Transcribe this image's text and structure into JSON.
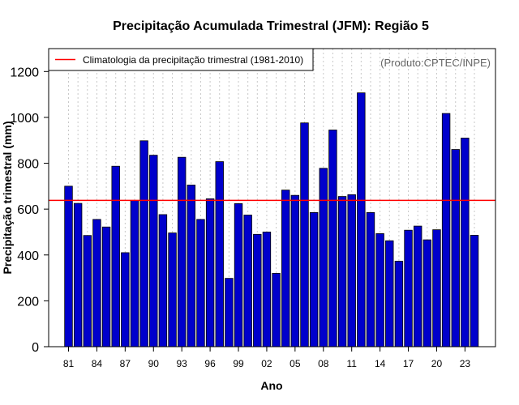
{
  "chart_data": {
    "type": "bar",
    "title": "Precipitação Acumulada Trimestral (JFM): Região 5",
    "xlabel": "Ano",
    "ylabel": "Precipitação trimestral (mm)",
    "ylim": [
      0,
      1300
    ],
    "yticks": [
      0,
      200,
      400,
      600,
      800,
      1000,
      1200
    ],
    "grid": "vertical dotted",
    "credit": "(Produto:CPTEC/INPE)",
    "legend": {
      "placement": "top-left",
      "entries": [
        {
          "label": "Climatologia da precipitação trimestral (1981-2010)",
          "color": "#ff0000"
        }
      ]
    },
    "climatology": 638,
    "categories": [
      "1981",
      "1982",
      "1983",
      "1984",
      "1985",
      "1986",
      "1987",
      "1988",
      "1989",
      "1990",
      "1991",
      "1992",
      "1993",
      "1994",
      "1995",
      "1996",
      "1997",
      "1998",
      "1999",
      "2000",
      "2001",
      "2002",
      "2003",
      "2004",
      "2005",
      "2006",
      "2007",
      "2008",
      "2009",
      "2010",
      "2011",
      "2012",
      "2013",
      "2014",
      "2015",
      "2016",
      "2017",
      "2018",
      "2019",
      "2020",
      "2021",
      "2022",
      "2023",
      "2024"
    ],
    "xtick_labels": [
      "81",
      "84",
      "87",
      "90",
      "93",
      "96",
      "99",
      "02",
      "05",
      "08",
      "11",
      "14",
      "17",
      "20",
      "23"
    ],
    "xtick_start_years": [
      1981,
      1984,
      1987,
      1990,
      1993,
      1996,
      1999,
      2002,
      2005,
      2008,
      2011,
      2014,
      2017,
      2020,
      2023
    ],
    "series": [
      {
        "name": "Precipitação trimestral",
        "color": "#0000cc",
        "values": [
          700,
          625,
          485,
          555,
          522,
          787,
          410,
          638,
          898,
          835,
          576,
          496,
          826,
          705,
          555,
          645,
          807,
          298,
          624,
          574,
          490,
          500,
          320,
          683,
          660,
          976,
          585,
          778,
          945,
          655,
          663,
          1107,
          585,
          493,
          462,
          373,
          508,
          526,
          466,
          510,
          1017,
          860,
          910,
          486
        ]
      }
    ]
  }
}
